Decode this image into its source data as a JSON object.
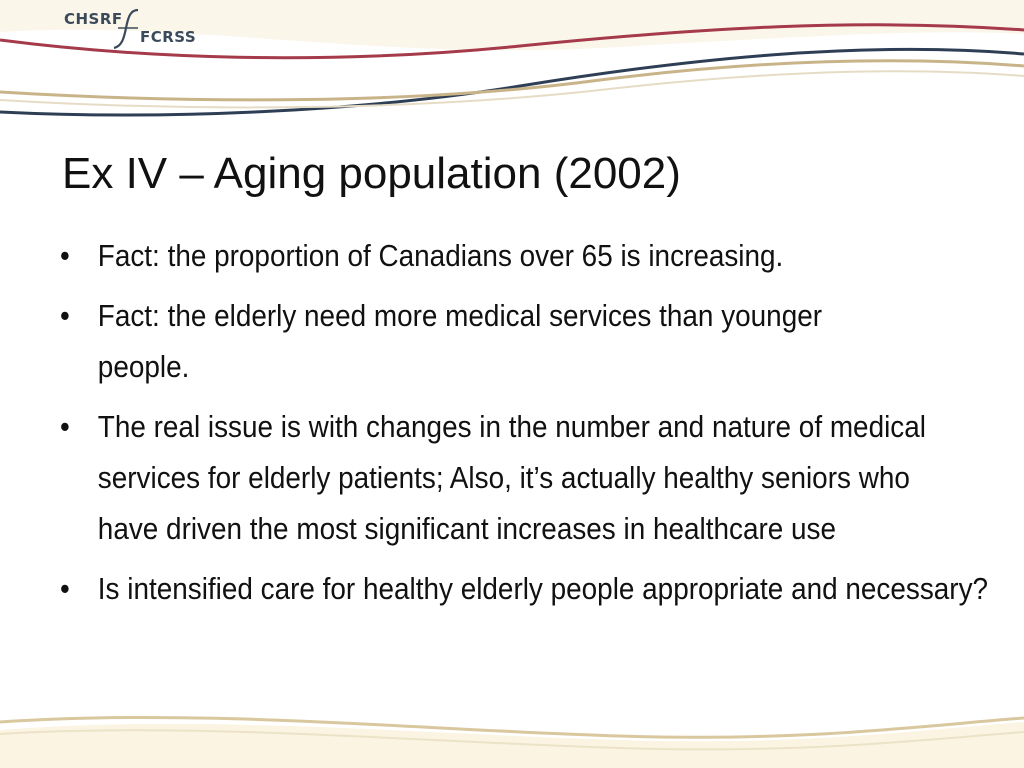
{
  "logo": {
    "text_en": "CHSRF",
    "text_fr": "FCRSS"
  },
  "colors": {
    "wave_red": "#a53a4a",
    "wave_navy": "#2e3f55",
    "wave_tan": "#c9b48a",
    "logo_text": "#3b4a5a"
  },
  "slide": {
    "title": "Ex IV – Aging population (2002)",
    "bullet_glyph": "•",
    "bullets": [
      "Fact: the proportion of Canadians over 65 is increasing.",
      "Fact: the elderly need more medical services than younger people.",
      "The real issue is with changes in the number and nature of medical services for elderly patients; Also, it’s actually healthy seniors who have driven the most significant increases in healthcare use",
      "Is intensified care for healthy elderly people appropriate and necessary?"
    ]
  }
}
